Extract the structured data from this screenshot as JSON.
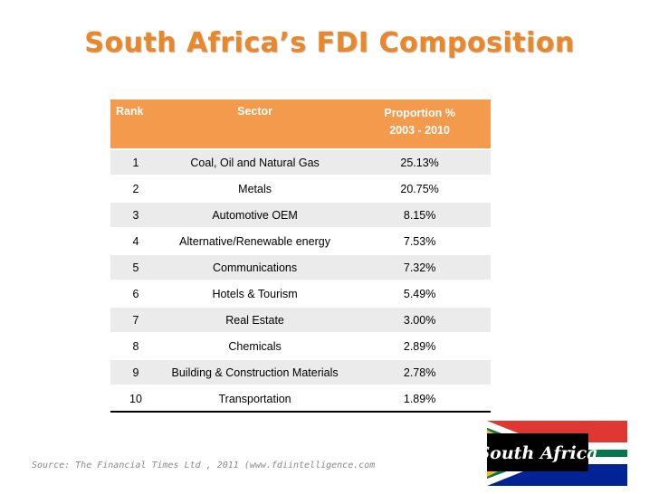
{
  "title": "South Africa’s FDI Composition",
  "table": {
    "headers": {
      "rank": "Rank",
      "sector": "Sector",
      "proportion_line1": "Proportion %",
      "proportion_line2": "2003 - 2010"
    },
    "rows": [
      {
        "rank": "1",
        "sector": "Coal, Oil and Natural Gas",
        "proportion": "25.13%"
      },
      {
        "rank": "2",
        "sector": "Metals",
        "proportion": "20.75%"
      },
      {
        "rank": "3",
        "sector": "Automotive OEM",
        "proportion": "8.15%"
      },
      {
        "rank": "4",
        "sector": "Alternative/Renewable energy",
        "proportion": "7.53%"
      },
      {
        "rank": "5",
        "sector": "Communications",
        "proportion": "7.32%"
      },
      {
        "rank": "6",
        "sector": "Hotels & Tourism",
        "proportion": "5.49%"
      },
      {
        "rank": "7",
        "sector": "Real Estate",
        "proportion": "3.00%"
      },
      {
        "rank": "8",
        "sector": "Chemicals",
        "proportion": "2.89%"
      },
      {
        "rank": "9",
        "sector": "Building & Construction Materials",
        "proportion": "2.78%"
      },
      {
        "rank": "10",
        "sector": "Transportation",
        "proportion": "1.89%"
      }
    ]
  },
  "source": "Source: The Financial Times Ltd , 2011 (www.fdiintelligence.com",
  "logo": {
    "text": "South Africa",
    "icon": "south-africa-flag-logo-icon"
  },
  "colors": {
    "title": "#e8882c",
    "header_bg": "#f39a4c",
    "row_shade": "#ebebeb",
    "flag_black": "#000000",
    "flag_green": "#007a4d",
    "flag_yellow": "#ffb612",
    "flag_red": "#de3831",
    "flag_blue": "#002395"
  }
}
